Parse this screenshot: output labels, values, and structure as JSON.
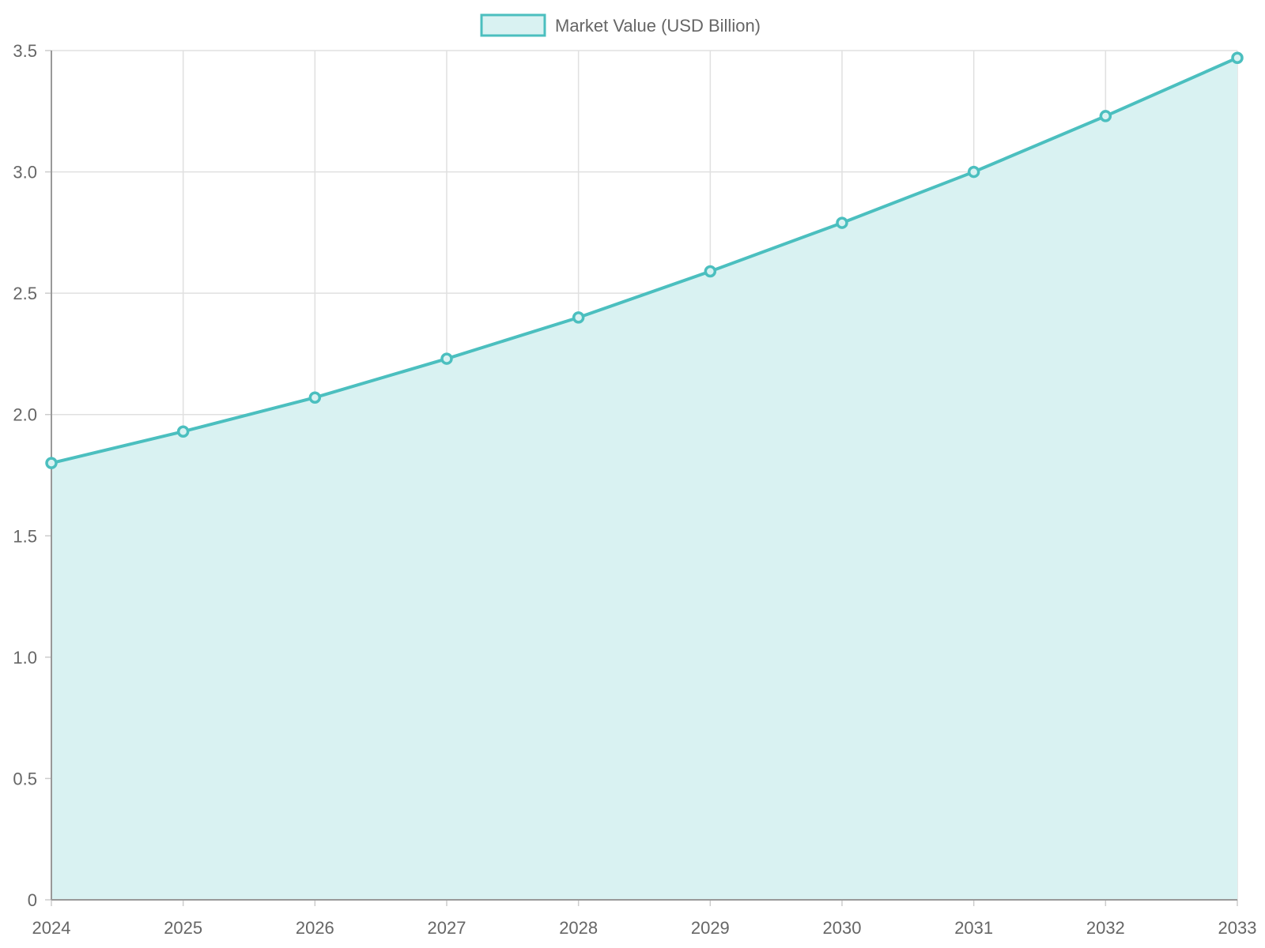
{
  "chart_data": {
    "type": "area",
    "title": "",
    "xlabel": "",
    "ylabel": "",
    "categories": [
      "2024",
      "2025",
      "2026",
      "2027",
      "2028",
      "2029",
      "2030",
      "2031",
      "2032",
      "2033"
    ],
    "series": [
      {
        "name": "Market Value (USD Billion)",
        "values": [
          1.8,
          1.93,
          2.07,
          2.23,
          2.4,
          2.59,
          2.79,
          3.0,
          3.23,
          3.47
        ],
        "color": "#4bbfbf",
        "fill": "#d9f2f2"
      }
    ],
    "ylim": [
      0,
      3.5
    ],
    "yticks": [
      "0",
      "0.5",
      "1.0",
      "1.5",
      "2.0",
      "2.5",
      "3.0",
      "3.5"
    ],
    "yticks_values": [
      0,
      0.5,
      1.0,
      1.5,
      2.0,
      2.5,
      3.0,
      3.5
    ],
    "grid": true,
    "legend_position": "top-center"
  }
}
